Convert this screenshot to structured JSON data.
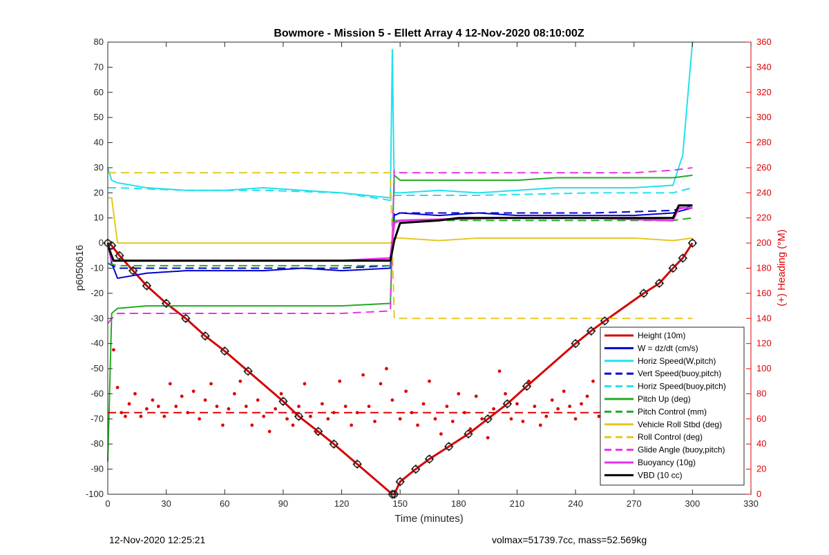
{
  "chart_data": {
    "type": "line",
    "title": "Bowmore - Mission 5 - Ellett Array 4 12-Nov-2020 08:10:00Z",
    "xlabel": "Time (minutes)",
    "ylabel_left": "p6050616",
    "ylabel_right": "(+) Heading (°M)",
    "xlim": [
      0,
      330
    ],
    "ylim_left": [
      -100,
      80
    ],
    "ylim_right": [
      0,
      360
    ],
    "x_ticks": [
      0,
      30,
      60,
      90,
      120,
      150,
      180,
      210,
      240,
      270,
      300,
      330
    ],
    "y_ticks_left": [
      -100,
      -90,
      -80,
      -70,
      -60,
      -50,
      -40,
      -30,
      -20,
      -10,
      0,
      10,
      20,
      30,
      40,
      50,
      60,
      70,
      80
    ],
    "y_ticks_right": [
      0,
      20,
      40,
      60,
      80,
      100,
      120,
      140,
      160,
      180,
      200,
      220,
      240,
      260,
      280,
      300,
      320,
      340,
      360
    ],
    "grid": false,
    "legend_position": "bottom-right",
    "colors": {
      "heading": "#e00000",
      "right_axis": "#e00000"
    },
    "series": [
      {
        "name": "Height (10m)",
        "color": "#d40000",
        "style": "solid",
        "width": 3,
        "x": [
          0,
          2,
          6,
          13,
          20,
          30,
          40,
          50,
          60,
          72,
          90,
          98,
          108,
          116,
          128,
          146,
          147,
          150,
          158,
          165,
          175,
          185,
          195,
          205,
          215,
          240,
          248,
          255,
          275,
          283,
          290,
          295,
          300
        ],
        "y": [
          0,
          -1,
          -5,
          -11,
          -17,
          -24,
          -30,
          -37,
          -43,
          -51,
          -63,
          -69,
          -75,
          -80,
          -88,
          -100,
          -100,
          -95,
          -90,
          -86,
          -81,
          -76,
          -70,
          -64,
          -57,
          -40,
          -35,
          -31,
          -20,
          -16,
          -10,
          -6,
          0
        ]
      },
      {
        "name": "W = dz/dt (cm/s)",
        "color": "#0000cc",
        "style": "solid",
        "width": 2,
        "x": [
          0,
          2,
          5,
          20,
          40,
          60,
          80,
          100,
          120,
          145,
          147,
          150,
          170,
          190,
          210,
          230,
          250,
          270,
          290,
          300
        ],
        "y": [
          0,
          -8,
          -14,
          -12,
          -11,
          -11,
          -11,
          -10,
          -11,
          -10,
          11,
          12,
          11,
          12,
          11,
          11,
          11,
          11,
          12,
          14
        ]
      },
      {
        "name": "Horiz Speed(W,pitch)",
        "color": "#22e0ee",
        "style": "solid",
        "width": 2,
        "x": [
          0,
          2,
          5,
          20,
          40,
          60,
          80,
          100,
          120,
          145,
          146,
          147,
          150,
          170,
          190,
          210,
          230,
          250,
          270,
          290,
          295,
          300
        ],
        "y": [
          30,
          25,
          24,
          22,
          21,
          21,
          22,
          21,
          20,
          18,
          77,
          20,
          20,
          21,
          20,
          21,
          22,
          22,
          22,
          23,
          35,
          80
        ]
      },
      {
        "name": "Vert Speed(buoy,pitch)",
        "color": "#0000cc",
        "style": "dashed",
        "width": 2,
        "x": [
          0,
          5,
          40,
          80,
          120,
          145,
          147,
          190,
          250,
          290,
          300
        ],
        "y": [
          -8,
          -10,
          -10,
          -10,
          -10,
          -9,
          12,
          12,
          12,
          13,
          15
        ]
      },
      {
        "name": "Horiz Speed(buoy,pitch)",
        "color": "#22e0ee",
        "style": "dashed",
        "width": 2,
        "x": [
          0,
          5,
          40,
          80,
          120,
          145,
          147,
          190,
          250,
          290,
          300
        ],
        "y": [
          22,
          22,
          21,
          21,
          20,
          17,
          19,
          19,
          20,
          20,
          22
        ]
      },
      {
        "name": "Pitch Up (deg)",
        "color": "#22aa22",
        "style": "solid",
        "width": 2,
        "x": [
          0,
          2,
          5,
          20,
          40,
          60,
          80,
          100,
          120,
          145,
          147,
          150,
          170,
          190,
          210,
          230,
          250,
          270,
          290,
          300
        ],
        "y": [
          -87,
          -28,
          -26,
          -25,
          -25,
          -25,
          -25,
          -25,
          -25,
          -24,
          27,
          25,
          25,
          25,
          25,
          26,
          26,
          26,
          26,
          27
        ]
      },
      {
        "name": "Pitch Control (mm)",
        "color": "#22aa22",
        "style": "dashed",
        "width": 2,
        "x": [
          0,
          5,
          40,
          80,
          120,
          145,
          147,
          190,
          250,
          290,
          300
        ],
        "y": [
          -8,
          -9,
          -9,
          -9,
          -9,
          -9,
          9,
          9,
          9,
          9,
          10
        ]
      },
      {
        "name": "Vehicle Roll Stbd (deg)",
        "color": "#e6c81e",
        "style": "solid",
        "width": 2,
        "x": [
          0,
          2,
          5,
          20,
          40,
          60,
          80,
          100,
          120,
          145,
          147,
          150,
          170,
          190,
          210,
          230,
          250,
          270,
          290,
          300
        ],
        "y": [
          18,
          18,
          0,
          0,
          0,
          0,
          0,
          0,
          0,
          0,
          2,
          2,
          1,
          2,
          2,
          2,
          2,
          2,
          1,
          2
        ]
      },
      {
        "name": "Roll Control (deg)",
        "color": "#e6c81e",
        "style": "dashed",
        "width": 2,
        "x": [
          0,
          5,
          40,
          80,
          120,
          145,
          147,
          190,
          250,
          290,
          300
        ],
        "y": [
          28,
          28,
          28,
          28,
          28,
          28,
          -30,
          -30,
          -30,
          -30,
          -30
        ]
      },
      {
        "name": "Glide Angle (buoy,pitch)",
        "color": "#e633e6",
        "style": "dashed",
        "width": 2,
        "x": [
          0,
          2,
          5,
          20,
          40,
          60,
          80,
          100,
          120,
          145,
          147,
          150,
          170,
          190,
          210,
          230,
          250,
          270,
          290,
          300
        ],
        "y": [
          -32,
          -30,
          -28,
          -28,
          -28,
          -28,
          -28,
          -28,
          -28,
          -27,
          29,
          28,
          28,
          28,
          28,
          28,
          28,
          28,
          29,
          30
        ]
      },
      {
        "name": "Buoyancy (10g)",
        "color": "#e633e6",
        "style": "solid",
        "width": 3,
        "x": [
          0,
          2,
          5,
          60,
          120,
          145,
          147,
          150,
          200,
          250,
          290,
          293,
          300
        ],
        "y": [
          0,
          -7,
          -7,
          -7,
          -7,
          -6,
          8,
          9,
          10,
          10,
          9,
          14,
          14
        ]
      },
      {
        "name": "VBD (10 cc)",
        "color": "#000000",
        "style": "solid",
        "width": 3,
        "x": [
          0,
          1,
          3,
          60,
          120,
          145,
          147,
          150,
          170,
          180,
          250,
          290,
          293,
          300
        ],
        "y": [
          0,
          -3,
          -7,
          -7,
          -7,
          -7,
          1,
          8,
          9,
          10,
          10,
          10,
          15,
          15
        ]
      }
    ],
    "heading": {
      "name": "Heading (°M)",
      "axis": "right",
      "color": "#e00000",
      "style": "dotted markers",
      "reference_line": 65,
      "x": [
        3,
        5,
        7,
        9,
        11,
        14,
        17,
        20,
        23,
        26,
        29,
        32,
        35,
        38,
        41,
        44,
        47,
        50,
        53,
        56,
        59,
        62,
        65,
        68,
        71,
        74,
        77,
        80,
        83,
        86,
        89,
        92,
        95,
        98,
        101,
        104,
        107,
        110,
        113,
        116,
        119,
        122,
        125,
        128,
        131,
        134,
        137,
        140,
        143,
        146,
        150,
        153,
        156,
        159,
        162,
        165,
        168,
        171,
        174,
        177,
        180,
        183,
        186,
        189,
        192,
        195,
        198,
        201,
        204,
        207,
        210,
        213,
        216,
        219,
        222,
        225,
        228,
        231,
        234,
        237,
        240,
        243,
        246,
        249,
        252,
        255,
        258,
        261,
        264,
        267,
        270,
        273,
        276,
        279,
        282,
        285,
        288,
        291,
        294,
        297,
        300
      ],
      "y": [
        115,
        85,
        65,
        62,
        72,
        80,
        62,
        68,
        75,
        70,
        62,
        88,
        70,
        78,
        65,
        82,
        60,
        75,
        88,
        70,
        55,
        68,
        80,
        90,
        70,
        55,
        75,
        62,
        50,
        68,
        80,
        60,
        55,
        70,
        88,
        62,
        50,
        72,
        60,
        65,
        90,
        70,
        55,
        65,
        95,
        70,
        58,
        88,
        100,
        75,
        60,
        82,
        65,
        55,
        72,
        90,
        60,
        48,
        70,
        58,
        80,
        65,
        52,
        78,
        60,
        45,
        68,
        98,
        80,
        60,
        72,
        58,
        90,
        70,
        55,
        62,
        75,
        68,
        82,
        70,
        60,
        72,
        78,
        90,
        62,
        70,
        55,
        75,
        85,
        62,
        70,
        50,
        78,
        88,
        60,
        75,
        95,
        50,
        80,
        45,
        60
      ]
    }
  },
  "footer": {
    "timestamp": "12-Nov-2020 12:25:21",
    "stats": "volmax=51739.7cc, mass=52.569kg"
  }
}
